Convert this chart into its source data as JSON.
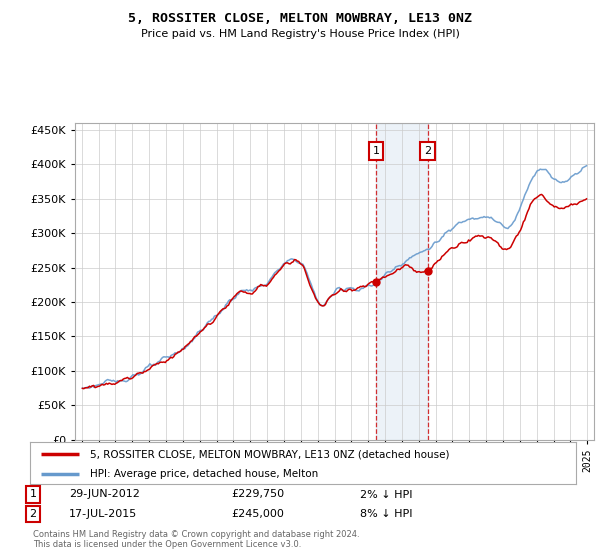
{
  "title": "5, ROSSITER CLOSE, MELTON MOWBRAY, LE13 0NZ",
  "subtitle": "Price paid vs. HM Land Registry's House Price Index (HPI)",
  "legend_entry1": "5, ROSSITER CLOSE, MELTON MOWBRAY, LE13 0NZ (detached house)",
  "legend_entry2": "HPI: Average price, detached house, Melton",
  "transaction1_date": "29-JUN-2012",
  "transaction1_price": "£229,750",
  "transaction1_hpi": "2% ↓ HPI",
  "transaction2_date": "17-JUL-2015",
  "transaction2_price": "£245,000",
  "transaction2_hpi": "8% ↓ HPI",
  "footer": "Contains HM Land Registry data © Crown copyright and database right 2024.\nThis data is licensed under the Open Government Licence v3.0.",
  "hpi_color": "#6699cc",
  "price_color": "#cc0000",
  "background_color": "#ffffff",
  "grid_color": "#cccccc",
  "ylim": [
    0,
    460000
  ],
  "yticks": [
    0,
    50000,
    100000,
    150000,
    200000,
    250000,
    300000,
    350000,
    400000,
    450000
  ],
  "start_year": 1995,
  "end_year": 2025,
  "t1_year": 2012,
  "t1_month": 6,
  "t1_price": 229750,
  "t2_year": 2015,
  "t2_month": 7,
  "t2_price": 245000
}
